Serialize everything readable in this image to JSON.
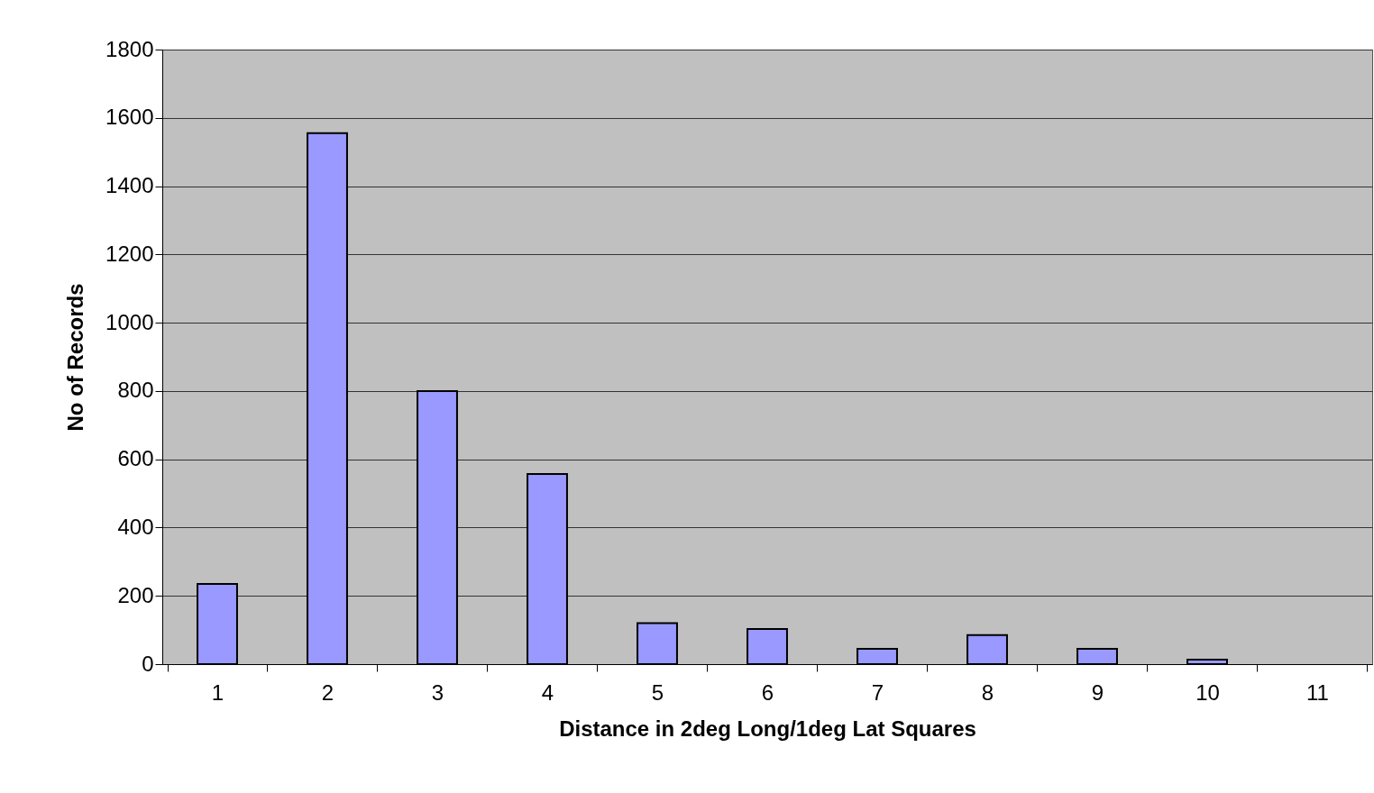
{
  "chart_data": {
    "type": "bar",
    "xlabel": "Distance in 2deg Long/1deg Lat Squares",
    "ylabel": "No of Records",
    "categories": [
      "1",
      "2",
      "3",
      "4",
      "5",
      "6",
      "7",
      "8",
      "9",
      "10",
      "11"
    ],
    "values": [
      235,
      1555,
      800,
      557,
      120,
      103,
      45,
      85,
      45,
      13,
      null
    ],
    "color": "#9999ff",
    "ylim": [
      0,
      1800
    ],
    "yticks": [
      0,
      200,
      400,
      600,
      800,
      1000,
      1200,
      1400,
      1600,
      1800
    ],
    "grid": "y"
  }
}
